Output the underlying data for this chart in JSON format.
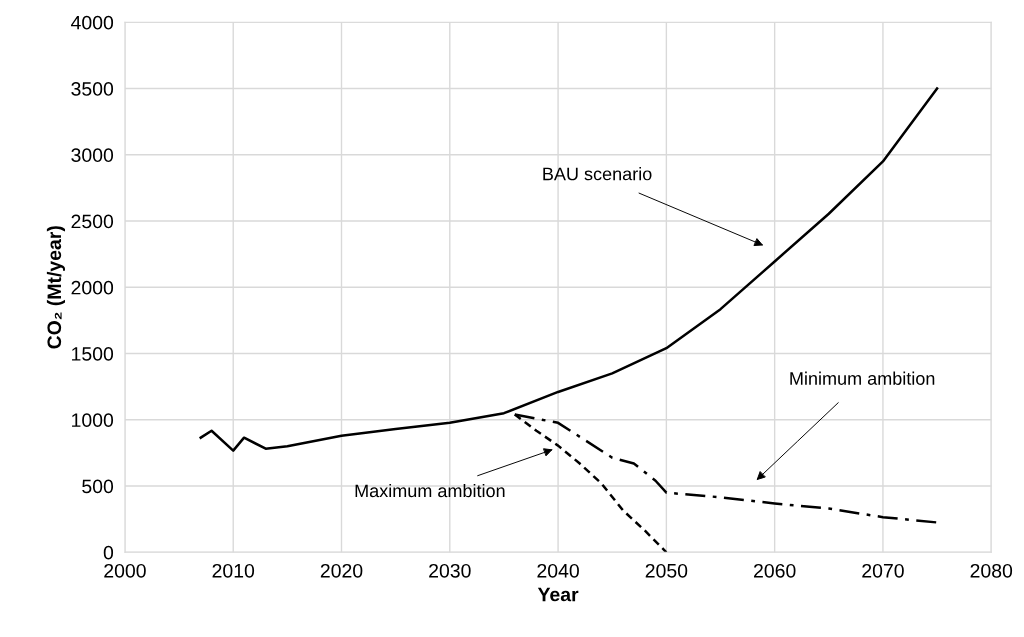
{
  "chart_data": {
    "type": "line",
    "xlabel": "Year",
    "ylabel": "CO₂ (Mt/year)",
    "xlim": [
      2000,
      2080
    ],
    "xticks": [
      2000,
      2010,
      2020,
      2030,
      2040,
      2050,
      2060,
      2070,
      2080
    ],
    "ylim": [
      0,
      4000
    ],
    "yticks": [
      0,
      500,
      1000,
      1500,
      2000,
      2500,
      3000,
      3500,
      4000
    ],
    "grid": true,
    "marker": "none",
    "series": [
      {
        "color": "#000000",
        "line_style": "solid",
        "x": [
          2007,
          2008,
          2010,
          2011,
          2013,
          2015,
          2020,
          2025,
          2030,
          2035,
          2040,
          2045,
          2050,
          2055,
          2060,
          2065,
          2070,
          2075
        ],
        "values": [
          865,
          917,
          767,
          865,
          782,
          800,
          880,
          930,
          977,
          1050,
          1210,
          1350,
          1540,
          1835,
          2195,
          2555,
          2950,
          3500
        ]
      },
      {
        "color": "#000000",
        "line_style": "dashed",
        "x": [
          2036,
          2038,
          2040,
          2042,
          2044,
          2046,
          2048,
          2050
        ],
        "values": [
          1040,
          917,
          805,
          670,
          520,
          316,
          165,
          0
        ]
      },
      {
        "color": "#000000",
        "line_style": "dashdot",
        "x": [
          2036,
          2040,
          2045,
          2047,
          2049,
          2050,
          2055,
          2060,
          2065,
          2070,
          2075
        ],
        "values": [
          1040,
          977,
          714,
          670,
          540,
          450,
          415,
          368,
          330,
          265,
          225
        ]
      }
    ],
    "annotations": [
      "BAU scenario",
      "Minimum ambition",
      "Maximum ambition"
    ]
  }
}
